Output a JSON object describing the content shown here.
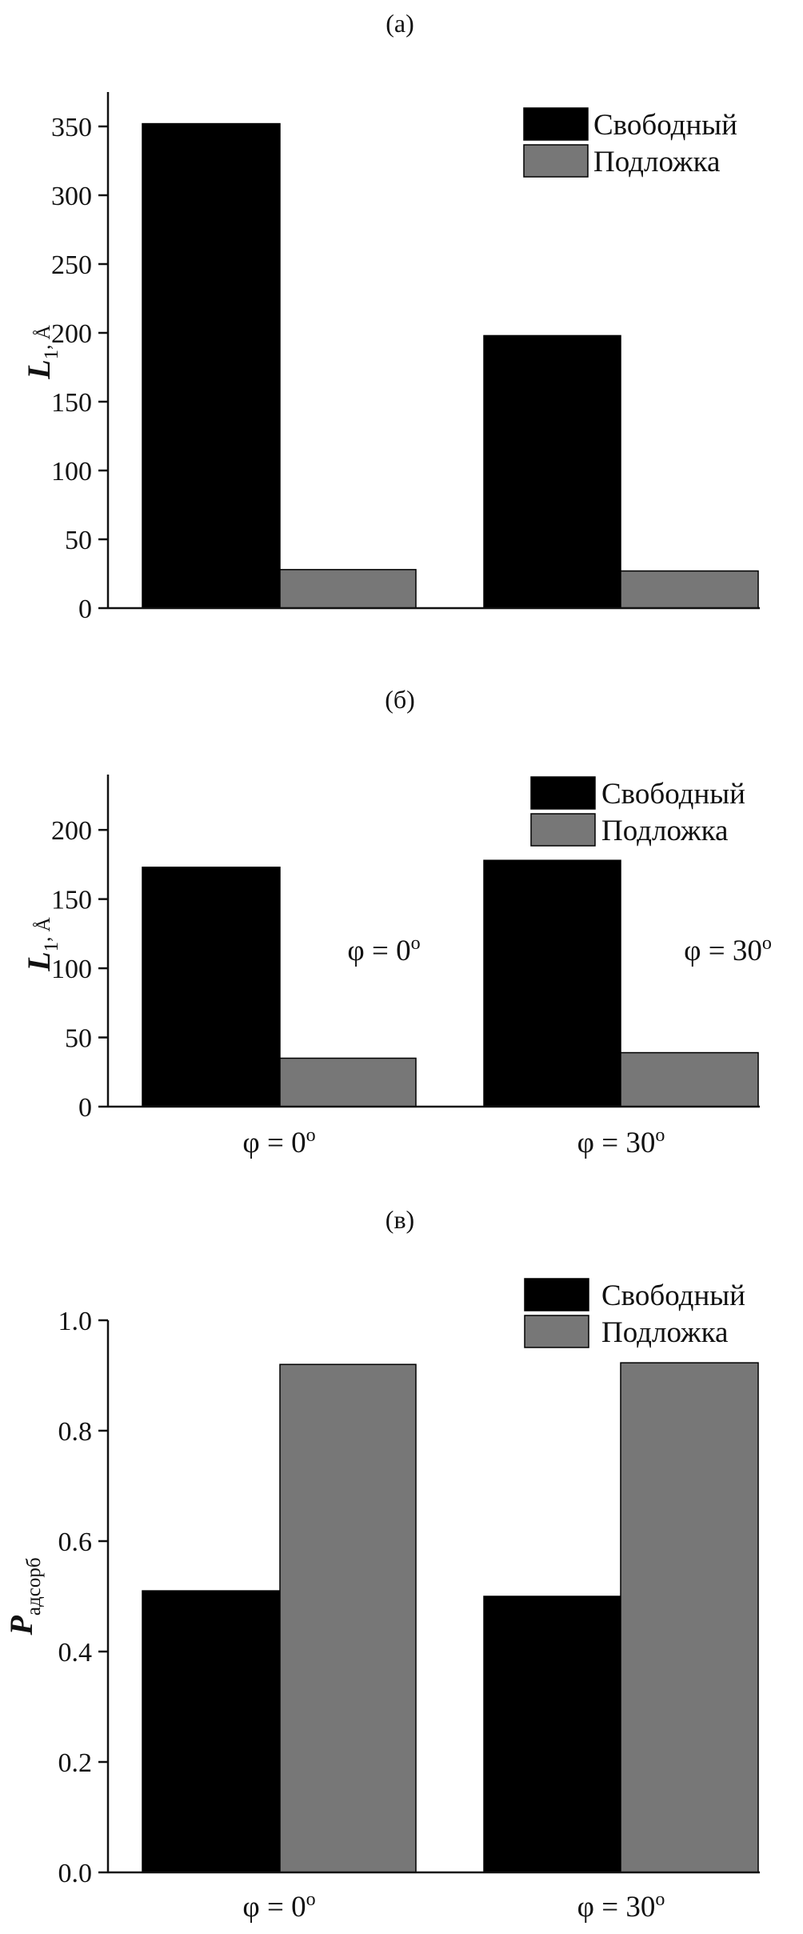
{
  "colors": {
    "free": "#000000",
    "substrate": "#777777",
    "axis": "#111111"
  },
  "chart_data": [
    {
      "type": "bar",
      "panel_label": "(а)",
      "ylabel": {
        "main": "L",
        "sub": "1",
        "rest": ", Å"
      },
      "ylim": [
        0,
        375
      ],
      "yticks": [
        0,
        50,
        100,
        150,
        200,
        250,
        300,
        350
      ],
      "categories": [
        "",
        ""
      ],
      "series": [
        {
          "name": "Свободный",
          "color": "#000000",
          "values": [
            352,
            198
          ]
        },
        {
          "name": "Подложка",
          "color": "#777777",
          "values": [
            28,
            27
          ]
        }
      ],
      "legend": "top-right"
    },
    {
      "type": "bar",
      "panel_label": "(б)",
      "ylabel": {
        "main": "L",
        "sub": "1",
        "rest": ", Å"
      },
      "ylim": [
        0,
        240
      ],
      "yticks": [
        0,
        50,
        100,
        150,
        200
      ],
      "categories": [
        "φ = 0",
        "φ = 30"
      ],
      "category_sup": "o",
      "annotations": [
        {
          "text": "φ = 0",
          "sup": "o",
          "category": 0
        },
        {
          "text": "φ = 30",
          "sup": "o",
          "category": 1
        }
      ],
      "series": [
        {
          "name": "Свободный",
          "color": "#000000",
          "values": [
            173,
            178
          ]
        },
        {
          "name": "Подложка",
          "color": "#777777",
          "values": [
            35,
            39
          ]
        }
      ],
      "legend": "top-right"
    },
    {
      "type": "bar",
      "panel_label": "(в)",
      "ylabel": {
        "main": "P",
        "sub": "адсорб",
        "rest": ""
      },
      "ylim": [
        0,
        1.0
      ],
      "yticks": [
        0.0,
        0.2,
        0.4,
        0.6,
        0.8,
        1.0
      ],
      "ytick_decimals": 1,
      "categories": [
        "φ = 0",
        "φ = 30"
      ],
      "category_sup": "o",
      "series": [
        {
          "name": "Свободный",
          "color": "#000000",
          "values": [
            0.51,
            0.5
          ]
        },
        {
          "name": "Подложка",
          "color": "#777777",
          "values": [
            0.92,
            0.923
          ]
        }
      ],
      "legend": "top-right"
    }
  ]
}
